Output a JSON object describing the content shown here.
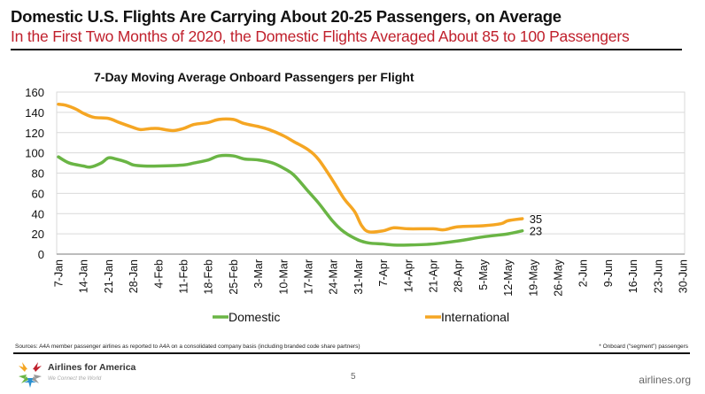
{
  "slide": {
    "title": "Domestic U.S. Flights Are Carrying About 20-25 Passengers, on Average",
    "subtitle": "In the First Two Months of 2020, the Domestic Flights Averaged About 85 to 100 Passengers",
    "subtitle_color": "#c0202c"
  },
  "footer": {
    "source": "Sources: A4A member passenger airlines as reported to A4A on a consolidated company basis (including branded code share partners)",
    "note": "* Onboard (\"segment\") passengers",
    "logo_name": "Airlines for America",
    "logo_tagline": "We Connect the World",
    "page_number": "5",
    "website": "airlines.org"
  },
  "chart_data": {
    "type": "line",
    "title": "7-Day Moving Average Onboard Passengers per Flight",
    "xlabel": "",
    "ylabel": "",
    "ylim": [
      0,
      160
    ],
    "yticks": [
      0,
      20,
      40,
      60,
      80,
      100,
      120,
      140,
      160
    ],
    "grid": true,
    "legend_position": "bottom",
    "x_unit": "days since 7-Jan-2020",
    "xlim": [
      0,
      175
    ],
    "x_tick_labels": [
      "7-Jan",
      "14-Jan",
      "21-Jan",
      "28-Jan",
      "4-Feb",
      "11-Feb",
      "18-Feb",
      "25-Feb",
      "3-Mar",
      "10-Mar",
      "17-Mar",
      "24-Mar",
      "31-Mar",
      "7-Apr",
      "14-Apr",
      "21-Apr",
      "28-Apr",
      "5-May",
      "12-May",
      "19-May",
      "26-May",
      "2-Jun",
      "9-Jun",
      "16-Jun",
      "23-Jun",
      "30-Jun"
    ],
    "series": [
      {
        "name": "Domestic",
        "color": "#6ab545",
        "end_label": "23",
        "x": [
          0,
          3,
          7,
          9,
          12,
          14,
          16,
          19,
          21,
          24,
          28,
          35,
          38,
          42,
          45,
          49,
          52,
          56,
          60,
          63,
          66,
          70,
          73,
          77,
          80,
          84,
          87,
          91,
          94,
          98,
          105,
          112,
          119,
          126,
          130
        ],
        "values": [
          96,
          90,
          87,
          86,
          90,
          95,
          94,
          91,
          88,
          87,
          87,
          88,
          90,
          93,
          97,
          97,
          94,
          93,
          90,
          85,
          78,
          62,
          50,
          32,
          22,
          14,
          11,
          10,
          9,
          9,
          10,
          13,
          17,
          20,
          23
        ]
      },
      {
        "name": "International",
        "color": "#f5a623",
        "end_label": "35",
        "x": [
          0,
          2,
          5,
          7,
          10,
          14,
          17,
          21,
          23,
          26,
          28,
          32,
          35,
          38,
          42,
          45,
          49,
          52,
          56,
          59,
          63,
          66,
          70,
          73,
          77,
          80,
          83,
          85,
          87,
          91,
          94,
          98,
          105,
          108,
          112,
          119,
          124,
          126,
          130
        ],
        "values": [
          148,
          147,
          143,
          139,
          135,
          134,
          130,
          125,
          123,
          124,
          124,
          122,
          124,
          128,
          130,
          133,
          133,
          129,
          126,
          123,
          117,
          111,
          103,
          93,
          72,
          55,
          42,
          28,
          22,
          23,
          26,
          25,
          25,
          24,
          27,
          28,
          30,
          33,
          35
        ]
      }
    ]
  }
}
